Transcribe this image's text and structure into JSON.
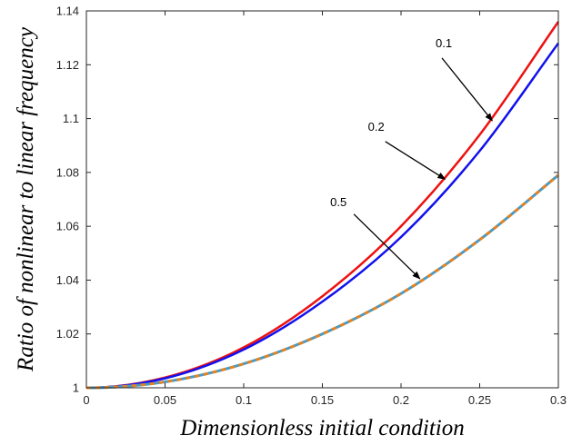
{
  "chart_data": {
    "type": "line",
    "title": "",
    "xlabel": "Dimensionless initial condition",
    "ylabel": "Ratio of nonlinear to linear frequency",
    "xlim": [
      0,
      0.3
    ],
    "ylim": [
      1,
      1.14
    ],
    "xticks": [
      "0",
      "0.05",
      "0.1",
      "0.15",
      "0.2",
      "0.25",
      "0.3"
    ],
    "yticks": [
      "1",
      "1.02",
      "1.04",
      "1.06",
      "1.08",
      "1.1",
      "1.12",
      "1.14"
    ],
    "grid": false,
    "legend": "none",
    "series": [
      {
        "color": "#ee1111",
        "style": "solid",
        "x": [
          0,
          0.05,
          0.1,
          0.15,
          0.2,
          0.25,
          0.3
        ],
        "y": [
          1,
          1.0038,
          1.015,
          1.034,
          1.06,
          1.094,
          1.136
        ]
      },
      {
        "color": "#1111ee",
        "style": "solid",
        "x": [
          0,
          0.05,
          0.1,
          0.15,
          0.2,
          0.25,
          0.3
        ],
        "y": [
          1,
          1.0035,
          1.0142,
          1.032,
          1.056,
          1.088,
          1.128
        ]
      },
      {
        "color": "#4a9bc4",
        "dash_color": "#e8821e",
        "style": "dashed",
        "x": [
          0,
          0.05,
          0.1,
          0.15,
          0.2,
          0.25,
          0.3
        ],
        "y": [
          1,
          1.0022,
          1.0089,
          1.02,
          1.035,
          1.055,
          1.079
        ]
      }
    ],
    "annotations": [
      {
        "text": "0.1",
        "text_at": [
          0.222,
          1.1265
        ],
        "arrow_from": [
          0.226,
          1.1225
        ],
        "arrow_to": [
          0.258,
          1.0992
        ]
      },
      {
        "text": "0.2",
        "text_at": [
          0.179,
          1.0955
        ],
        "arrow_from": [
          0.19,
          1.0915
        ],
        "arrow_to": [
          0.228,
          1.0775
        ]
      },
      {
        "text": "0.5",
        "text_at": [
          0.155,
          1.0675
        ],
        "arrow_from": [
          0.17,
          1.0645
        ],
        "arrow_to": [
          0.212,
          1.0405
        ]
      }
    ]
  }
}
